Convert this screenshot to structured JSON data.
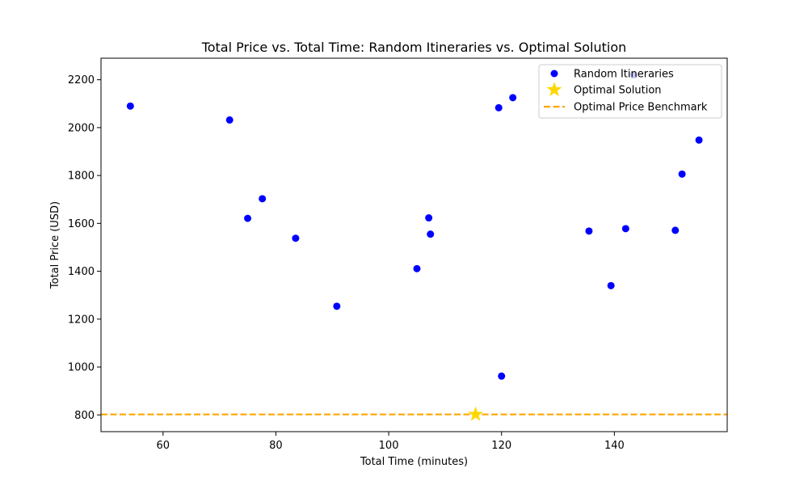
{
  "chart_data": {
    "type": "scatter",
    "title": "Total Price vs. Total Time: Random Itineraries vs. Optimal Solution",
    "xlabel": "Total Time (minutes)",
    "ylabel": "Total Price (USD)",
    "xlim": [
      49,
      160
    ],
    "ylim": [
      730,
      2290
    ],
    "xticks": [
      60,
      80,
      100,
      120,
      140
    ],
    "yticks": [
      800,
      1000,
      1200,
      1400,
      1600,
      1800,
      2000,
      2200
    ],
    "grid": false,
    "legend_position": "top-right",
    "series": [
      {
        "name": "Random Itineraries",
        "kind": "scatter",
        "marker": "circle",
        "color": "#0000ff",
        "x": [
          54.2,
          71.8,
          75.0,
          77.6,
          83.5,
          90.8,
          105.0,
          107.1,
          107.4,
          119.5,
          120.0,
          122.0,
          135.5,
          139.4,
          142.0,
          143.4,
          150.8,
          152.0,
          155.0
        ],
        "y": [
          2090,
          2032,
          1621,
          1703,
          1538,
          1254,
          1411,
          1623,
          1555,
          2083,
          962,
          2125,
          1568,
          1340,
          1578,
          2220,
          1571,
          1806,
          1948
        ]
      },
      {
        "name": "Optimal Solution",
        "kind": "scatter",
        "marker": "star",
        "color": "#ffd700",
        "x": [
          115.4
        ],
        "y": [
          802
        ]
      },
      {
        "name": "Optimal Price Benchmark",
        "kind": "hline",
        "linestyle": "dashed",
        "color": "#ffa500",
        "y": 802
      }
    ]
  }
}
